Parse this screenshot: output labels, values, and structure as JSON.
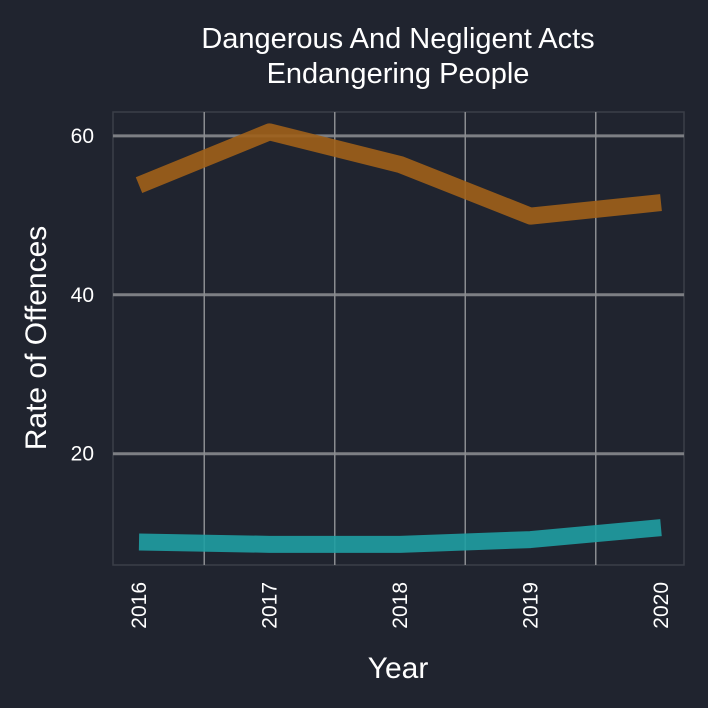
{
  "chart_data": {
    "type": "line",
    "title_lines": [
      "Dangerous And Negligent Acts",
      "Endangering People"
    ],
    "xlabel": "Year",
    "ylabel": "Rate of Offences",
    "x": [
      "2016",
      "2017",
      "2018",
      "2019",
      "2020"
    ],
    "y_ticks": [
      "20",
      "40",
      "60"
    ],
    "ylim": [
      6,
      63
    ],
    "grid": true,
    "legend": "none",
    "series": [
      {
        "color": "#a0611a",
        "values": [
          53.8,
          60.5,
          56.4,
          49.9,
          51.6
        ]
      },
      {
        "color": "#1f9ea3",
        "values": [
          8.9,
          8.6,
          8.6,
          9.2,
          10.7
        ]
      }
    ],
    "colors": {
      "background": "#20242f",
      "panel_border": "#3b3f48",
      "grid_major": "#7d7f84",
      "grid_minor": "#8a8c90",
      "text": "#ffffff"
    }
  }
}
